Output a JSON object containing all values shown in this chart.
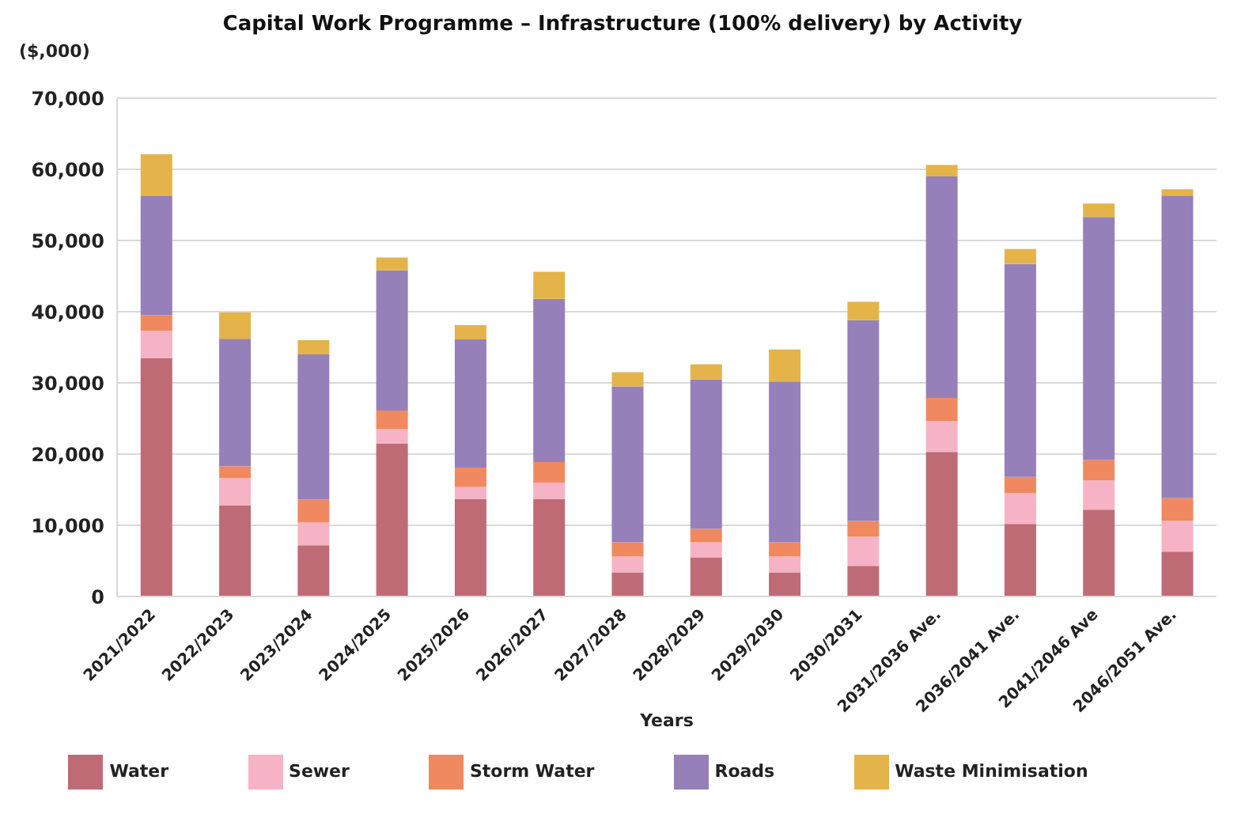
{
  "chart_data": {
    "type": "bar",
    "title": "Capital Work Programme – Infrastructure (100% delivery) by Activity",
    "xlabel": "Years",
    "ylabel": "($,000)",
    "stacked": true,
    "grid": "y",
    "legend": "bottom",
    "categories": [
      "2021/2022",
      "2022/2023",
      "2023/2024",
      "2024/2025",
      "2025/2026",
      "2026/2027",
      "2027/2028",
      "2028/2029",
      "2029/2030",
      "2030/2031",
      "2031/2036 Ave.",
      "2036/2041 Ave.",
      "2041/2046 Ave",
      "2046/2051 Ave."
    ],
    "ylim": [
      0,
      70000
    ],
    "yticks": [
      {
        "value": 0,
        "label": "0"
      },
      {
        "value": 10000,
        "label": "10,000"
      },
      {
        "value": 20000,
        "label": "20,000"
      },
      {
        "value": 30000,
        "label": "30,000"
      },
      {
        "value": 40000,
        "label": "40,000"
      },
      {
        "value": 50000,
        "label": "50,000"
      },
      {
        "value": 60000,
        "label": "60,000"
      },
      {
        "value": 70000,
        "label": "70,000"
      }
    ],
    "series": [
      {
        "name": "Water",
        "color": "#bf6b76",
        "values": [
          33500,
          12800,
          7200,
          21500,
          13700,
          13700,
          3400,
          5500,
          3400,
          4300,
          20300,
          10200,
          12200,
          6300
        ]
      },
      {
        "name": "Sewer",
        "color": "#f5b3c5",
        "values": [
          3800,
          3800,
          3200,
          2000,
          1700,
          2300,
          2200,
          2100,
          2200,
          4100,
          4300,
          4300,
          4100,
          4300
        ]
      },
      {
        "name": "Storm Water",
        "color": "#f0895f",
        "values": [
          2200,
          1700,
          3200,
          2600,
          2700,
          2900,
          2000,
          1900,
          2000,
          2200,
          3300,
          2300,
          2900,
          3200
        ]
      },
      {
        "name": "Roads",
        "color": "#9580ba",
        "values": [
          16800,
          17900,
          20400,
          19700,
          18000,
          22900,
          21900,
          21000,
          22600,
          28200,
          31100,
          29900,
          34100,
          42500
        ]
      },
      {
        "name": "Waste Minimisation",
        "color": "#e4b44a",
        "values": [
          5800,
          3700,
          2000,
          1800,
          2000,
          3800,
          2000,
          2100,
          4500,
          2600,
          1600,
          2100,
          1900,
          900
        ]
      }
    ]
  }
}
